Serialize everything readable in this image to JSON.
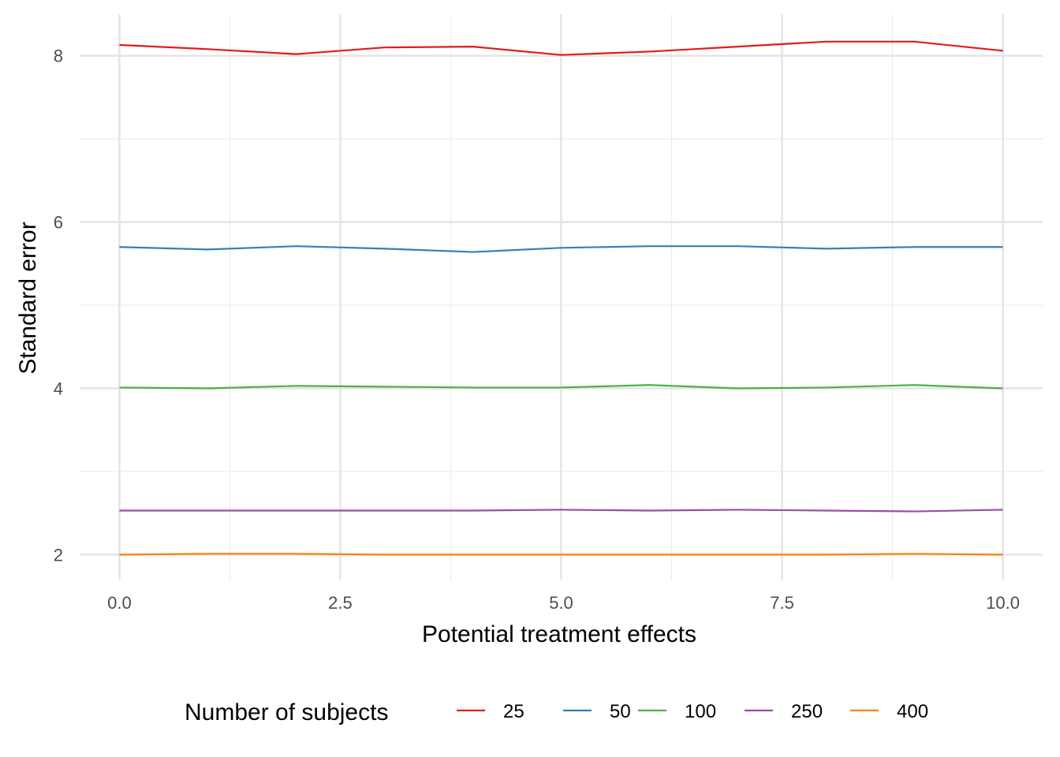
{
  "chart_data": {
    "type": "line",
    "title": "",
    "xlabel": "Potential treatment effects",
    "ylabel": "Standard error",
    "x": [
      0,
      1,
      2,
      3,
      4,
      5,
      6,
      7,
      8,
      9,
      10
    ],
    "xlim": [
      -0.45,
      10.45
    ],
    "ylim": [
      1.7,
      8.5
    ],
    "x_ticks": [
      0,
      2.5,
      5,
      7.5,
      10
    ],
    "x_tick_labels": [
      "0.0",
      "2.5",
      "5.0",
      "7.5",
      "10.0"
    ],
    "x_minor_ticks": [
      1.25,
      3.75,
      6.25,
      8.75
    ],
    "y_ticks": [
      2,
      4,
      6,
      8
    ],
    "y_tick_labels": [
      "2",
      "4",
      "6",
      "8"
    ],
    "y_minor_ticks": [
      3,
      5,
      7
    ],
    "grid": true,
    "legend": {
      "title": "Number of subjects",
      "position": "bottom"
    },
    "series": [
      {
        "name": "25",
        "color": "#e41a1c",
        "values": [
          8.13,
          8.08,
          8.02,
          8.1,
          8.11,
          8.01,
          8.05,
          8.11,
          8.17,
          8.17,
          8.06
        ]
      },
      {
        "name": "50",
        "color": "#377eb8",
        "values": [
          5.7,
          5.67,
          5.71,
          5.68,
          5.64,
          5.69,
          5.71,
          5.71,
          5.68,
          5.7,
          5.7
        ]
      },
      {
        "name": "100",
        "color": "#4daf4a",
        "values": [
          4.01,
          4.0,
          4.03,
          4.02,
          4.01,
          4.01,
          4.04,
          4.0,
          4.01,
          4.04,
          4.0
        ]
      },
      {
        "name": "250",
        "color": "#984ea3",
        "values": [
          2.53,
          2.53,
          2.53,
          2.53,
          2.53,
          2.54,
          2.53,
          2.54,
          2.53,
          2.52,
          2.54
        ]
      },
      {
        "name": "400",
        "color": "#ff7f00",
        "values": [
          2.0,
          2.01,
          2.01,
          2.0,
          2.0,
          2.0,
          2.0,
          2.0,
          2.0,
          2.01,
          2.0
        ]
      }
    ]
  }
}
